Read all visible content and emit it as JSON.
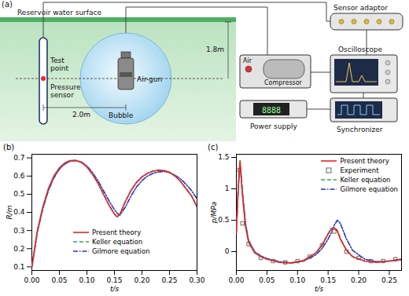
{
  "diagram": {
    "panel": "(a)",
    "water_surface": "Reservoir water surface",
    "test_point": "Test point",
    "pressure_sensor": "Pressure sensor",
    "depth": "1.8m",
    "distance": "2.0m",
    "air_gun": "Air-gun",
    "bubble": "Bubble",
    "air": "Air",
    "compressor": "Compressor",
    "sensor_adaptor": "Sensor adaptor",
    "oscilloscope": "Oscilloscope",
    "power_supply": "Power supply",
    "display": "8888",
    "synchronizer": "Synchronizer"
  },
  "chart_data": [
    {
      "type": "line",
      "title": "(b)",
      "x_label": "t/s",
      "y_label": "R/m",
      "x": [
        0,
        0.005,
        0.01,
        0.02,
        0.03,
        0.04,
        0.05,
        0.06,
        0.07,
        0.08,
        0.09,
        0.1,
        0.11,
        0.12,
        0.13,
        0.14,
        0.15,
        0.155,
        0.16,
        0.17,
        0.18,
        0.19,
        0.2,
        0.21,
        0.22,
        0.23,
        0.24,
        0.25,
        0.26,
        0.27,
        0.28,
        0.29,
        0.3
      ],
      "series": [
        {
          "name": "Present theory",
          "color": "#e8262a",
          "line_style": "solid",
          "values": [
            0.1,
            0.2,
            0.3,
            0.43,
            0.53,
            0.6,
            0.645,
            0.672,
            0.685,
            0.685,
            0.675,
            0.65,
            0.61,
            0.56,
            0.5,
            0.44,
            0.39,
            0.375,
            0.39,
            0.46,
            0.52,
            0.565,
            0.595,
            0.615,
            0.627,
            0.632,
            0.63,
            0.62,
            0.6,
            0.57,
            0.53,
            0.49,
            0.43
          ]
        },
        {
          "name": "Keller equation",
          "color": "#3aa655",
          "line_style": "dashed",
          "values": [
            0.1,
            0.2,
            0.3,
            0.43,
            0.53,
            0.6,
            0.645,
            0.673,
            0.686,
            0.686,
            0.676,
            0.651,
            0.612,
            0.562,
            0.502,
            0.442,
            0.392,
            0.377,
            0.392,
            0.462,
            0.522,
            0.566,
            0.596,
            0.616,
            0.628,
            0.633,
            0.631,
            0.621,
            0.602,
            0.572,
            0.533,
            0.493,
            0.435
          ]
        },
        {
          "name": "Gilmore equation",
          "color": "#2233cc",
          "line_style": "dashdot",
          "values": [
            0.1,
            0.19,
            0.29,
            0.42,
            0.52,
            0.59,
            0.638,
            0.667,
            0.682,
            0.686,
            0.678,
            0.656,
            0.62,
            0.575,
            0.52,
            0.465,
            0.415,
            0.395,
            0.385,
            0.43,
            0.49,
            0.54,
            0.575,
            0.6,
            0.615,
            0.623,
            0.625,
            0.62,
            0.605,
            0.585,
            0.555,
            0.52,
            0.475
          ]
        }
      ],
      "xlim": [
        0,
        0.3
      ],
      "xticks": [
        {
          "value": 0,
          "label": "0.00"
        },
        0.05,
        {
          "value": 0.1,
          "label": "0.10"
        },
        0.15,
        {
          "value": 0.2,
          "label": "0.20"
        },
        0.25,
        {
          "value": 0.3,
          "label": "0.30"
        }
      ],
      "ylim": [
        0.08,
        0.72
      ],
      "yticks": [
        0.1,
        0.2,
        0.3,
        0.4,
        0.5,
        0.6,
        0.7
      ],
      "legend": "lower center",
      "grid": false
    },
    {
      "type": "line",
      "title": "(c)",
      "x_label": "t/s",
      "y_label": "p/MPa",
      "x": [
        0,
        0.003,
        0.006,
        0.01,
        0.015,
        0.02,
        0.03,
        0.04,
        0.05,
        0.07,
        0.09,
        0.11,
        0.13,
        0.14,
        0.15,
        0.155,
        0.16,
        0.165,
        0.17,
        0.18,
        0.19,
        0.21,
        0.23,
        0.25,
        0.27
      ],
      "series": [
        {
          "name": "Present theory",
          "color": "#e8262a",
          "line_style": "solid",
          "values": [
            0.3,
            1.0,
            1.45,
            0.9,
            0.4,
            0.15,
            -0.02,
            -0.08,
            -0.12,
            -0.17,
            -0.18,
            -0.14,
            -0.02,
            0.1,
            0.28,
            0.36,
            0.38,
            0.33,
            0.2,
            0.02,
            -0.08,
            -0.15,
            -0.17,
            -0.15,
            -0.12
          ]
        },
        {
          "name": "Experiment",
          "type": "scatter",
          "marker": "square",
          "color": "#666666",
          "x": [
            0.005,
            0.01,
            0.02,
            0.04,
            0.06,
            0.08,
            0.1,
            0.12,
            0.14,
            0.16,
            0.18,
            0.2,
            0.22,
            0.24,
            0.26
          ],
          "values": [
            1.3,
            0.45,
            0.12,
            -0.1,
            -0.15,
            -0.17,
            -0.15,
            -0.08,
            0.1,
            0.32,
            0.0,
            -0.1,
            -0.15,
            -0.15,
            -0.12
          ]
        },
        {
          "name": "Keller equation",
          "color": "#3aa655",
          "line_style": "dashed",
          "values": [
            0.3,
            1.0,
            1.43,
            0.9,
            0.42,
            0.16,
            -0.01,
            -0.08,
            -0.12,
            -0.17,
            -0.18,
            -0.14,
            -0.02,
            0.11,
            0.29,
            0.37,
            0.39,
            0.34,
            0.21,
            0.03,
            -0.08,
            -0.15,
            -0.17,
            -0.15,
            -0.12
          ]
        },
        {
          "name": "Gilmore equation",
          "color": "#2233cc",
          "line_style": "dashdot",
          "values": [
            0.3,
            1.0,
            1.4,
            0.95,
            0.45,
            0.18,
            0.0,
            -0.07,
            -0.11,
            -0.16,
            -0.18,
            -0.15,
            -0.05,
            0.05,
            0.2,
            0.3,
            0.42,
            0.5,
            0.45,
            0.2,
            0.02,
            -0.12,
            -0.16,
            -0.15,
            -0.13
          ]
        }
      ],
      "xlim": [
        0,
        0.27
      ],
      "xticks": [
        {
          "value": 0,
          "label": "0.00"
        },
        0.05,
        {
          "value": 0.1,
          "label": "0.10"
        },
        0.15,
        {
          "value": 0.2,
          "label": "0.20"
        },
        0.25
      ],
      "ylim": [
        -0.3,
        1.55
      ],
      "yticks": [
        0,
        0.5,
        1,
        1.5
      ],
      "legend": "upper right",
      "grid": false
    }
  ]
}
